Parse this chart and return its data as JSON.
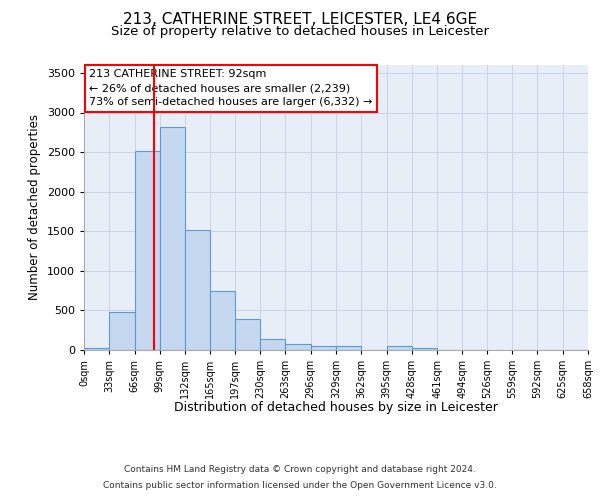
{
  "title_line1": "213, CATHERINE STREET, LEICESTER, LE4 6GE",
  "title_line2": "Size of property relative to detached houses in Leicester",
  "xlabel": "Distribution of detached houses by size in Leicester",
  "ylabel": "Number of detached properties",
  "footer_line1": "Contains HM Land Registry data © Crown copyright and database right 2024.",
  "footer_line2": "Contains public sector information licensed under the Open Government Licence v3.0.",
  "annotation_line1": "213 CATHERINE STREET: 92sqm",
  "annotation_line2": "← 26% of detached houses are smaller (2,239)",
  "annotation_line3": "73% of semi-detached houses are larger (6,332) →",
  "bar_edges": [
    0,
    33,
    66,
    99,
    132,
    165,
    197,
    230,
    263,
    296,
    329,
    362,
    395,
    428,
    461,
    494,
    526,
    559,
    592,
    625,
    658
  ],
  "bar_heights": [
    20,
    480,
    2510,
    2820,
    1520,
    750,
    390,
    140,
    70,
    50,
    50,
    0,
    50,
    20,
    0,
    0,
    0,
    0,
    0,
    0
  ],
  "bar_color": "#c5d8f0",
  "bar_edge_color": "#5b9bd5",
  "grid_color": "#c8d4e8",
  "background_color": "#e8eef8",
  "redline_x": 92,
  "ylim": [
    0,
    3600
  ],
  "yticks": [
    0,
    500,
    1000,
    1500,
    2000,
    2500,
    3000,
    3500
  ],
  "tick_labels": [
    "0sqm",
    "33sqm",
    "66sqm",
    "99sqm",
    "132sqm",
    "165sqm",
    "197sqm",
    "230sqm",
    "263sqm",
    "296sqm",
    "329sqm",
    "362sqm",
    "395sqm",
    "428sqm",
    "461sqm",
    "494sqm",
    "526sqm",
    "559sqm",
    "592sqm",
    "625sqm",
    "658sqm"
  ],
  "title1_fontsize": 11,
  "title2_fontsize": 9.5,
  "ylabel_fontsize": 8.5,
  "xlabel_fontsize": 9,
  "tick_fontsize": 7,
  "ytick_fontsize": 8,
  "footer_fontsize": 6.5,
  "ann_fontsize": 8
}
